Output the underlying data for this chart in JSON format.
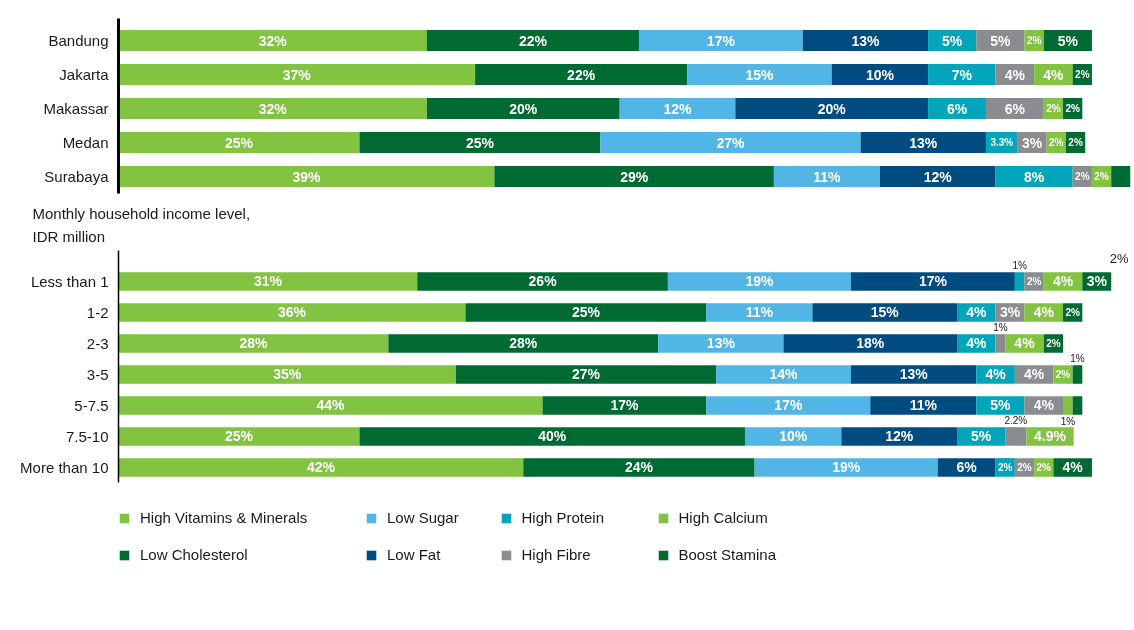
{
  "chart_data": [
    {
      "type": "bar",
      "orientation": "horizontal",
      "stacked": true,
      "categories": [
        "Bandung",
        "Jakarta",
        "Makassar",
        "Medan",
        "Surabaya"
      ],
      "series": [
        {
          "color": "#82c341",
          "values": [
            32,
            37,
            32,
            25,
            39
          ],
          "value_labels": [
            "32%",
            "37%",
            "32%",
            "25%",
            "39%"
          ]
        },
        {
          "color": "#006a33",
          "values": [
            22,
            22,
            20,
            25,
            29
          ],
          "value_labels": [
            "22%",
            "22%",
            "20%",
            "25%",
            "29%"
          ]
        },
        {
          "color": "#51b6e6",
          "values": [
            17,
            15,
            12,
            27,
            11
          ],
          "value_labels": [
            "17%",
            "15%",
            "12%",
            "27%",
            "11%"
          ]
        },
        {
          "color": "#004b80",
          "values": [
            13,
            10,
            20,
            13,
            12
          ],
          "value_labels": [
            "13%",
            "10%",
            "20%",
            "13%",
            "12%"
          ]
        },
        {
          "color": "#00a5b9",
          "values": [
            5,
            7,
            6,
            3.3,
            8
          ],
          "value_labels": [
            "5%",
            "7%",
            "6%",
            "3.3%",
            "8%"
          ]
        },
        {
          "color": "#8a8c8f",
          "values": [
            5,
            4,
            6,
            3,
            2
          ],
          "value_labels": [
            "5%",
            "4%",
            "6%",
            "3%",
            "2%"
          ]
        },
        {
          "color": "#82c341",
          "values": [
            2,
            4,
            2,
            2,
            2
          ],
          "value_labels": [
            "2%",
            "4%",
            "2%",
            "2%",
            "2%"
          ]
        },
        {
          "color": "#006a33",
          "values": [
            5,
            2,
            2,
            2,
            2
          ],
          "value_labels": [
            "5%",
            "2%",
            "2%",
            "2%",
            null
          ]
        }
      ]
    },
    {
      "type": "bar",
      "orientation": "horizontal",
      "stacked": true,
      "title": "Monthly household income level,\nIDR million",
      "legend": "bottom",
      "annotations": [
        "2%"
      ],
      "categories": [
        "Less than 1",
        "1-2",
        "2-3",
        "3-5",
        "5-7.5",
        "7.5-10",
        "More than 10"
      ],
      "series": [
        {
          "name": "High Vitamins & Minerals",
          "color": "#82c341",
          "values": [
            31,
            36,
            28,
            35,
            44,
            25,
            42
          ],
          "value_labels": [
            "31%",
            "36%",
            "28%",
            "35%",
            "44%",
            "25%",
            "42%"
          ]
        },
        {
          "name": "Low Cholesterol",
          "color": "#006a33",
          "values": [
            26,
            25,
            28,
            27,
            17,
            40,
            24
          ],
          "value_labels": [
            "26%",
            "25%",
            "28%",
            "27%",
            "17%",
            "40%",
            "24%"
          ]
        },
        {
          "name": "Low Sugar",
          "color": "#51b6e6",
          "values": [
            19,
            11,
            13,
            14,
            17,
            10,
            19
          ],
          "value_labels": [
            "19%",
            "11%",
            "13%",
            "14%",
            "17%",
            "10%",
            "19%"
          ]
        },
        {
          "name": "Low Fat",
          "color": "#004b80",
          "values": [
            17,
            15,
            18,
            13,
            11,
            12,
            6
          ],
          "value_labels": [
            "17%",
            "15%",
            "18%",
            "13%",
            "11%",
            "12%",
            "6%"
          ]
        },
        {
          "name": "High Protein",
          "color": "#00a5b9",
          "values": [
            1,
            4,
            4,
            4,
            5,
            5,
            2
          ],
          "value_labels": [
            "1%",
            "4%",
            "4%",
            "4%",
            "5%",
            "5%",
            "2%"
          ]
        },
        {
          "name": "High Fibre",
          "color": "#8a8c8f",
          "values": [
            2,
            3,
            1,
            4,
            4,
            2.2,
            2
          ],
          "value_labels": [
            "2%",
            "3%",
            "1%",
            "4%",
            "4%",
            "2.2%",
            "2%"
          ]
        },
        {
          "name": "High Calcium",
          "color": "#82c341",
          "values": [
            4,
            4,
            4,
            2,
            1,
            4.9,
            2
          ],
          "value_labels": [
            "4%",
            "4%",
            "4%",
            "2%",
            "1%",
            "4.9%",
            "2%"
          ]
        },
        {
          "name": "Boost Stamina",
          "color": "#006a33",
          "values": [
            3,
            2,
            2,
            1,
            1,
            null,
            4
          ],
          "value_labels": [
            "3%",
            "2%",
            "2%",
            "1%",
            null,
            null,
            "4%"
          ]
        }
      ]
    }
  ]
}
